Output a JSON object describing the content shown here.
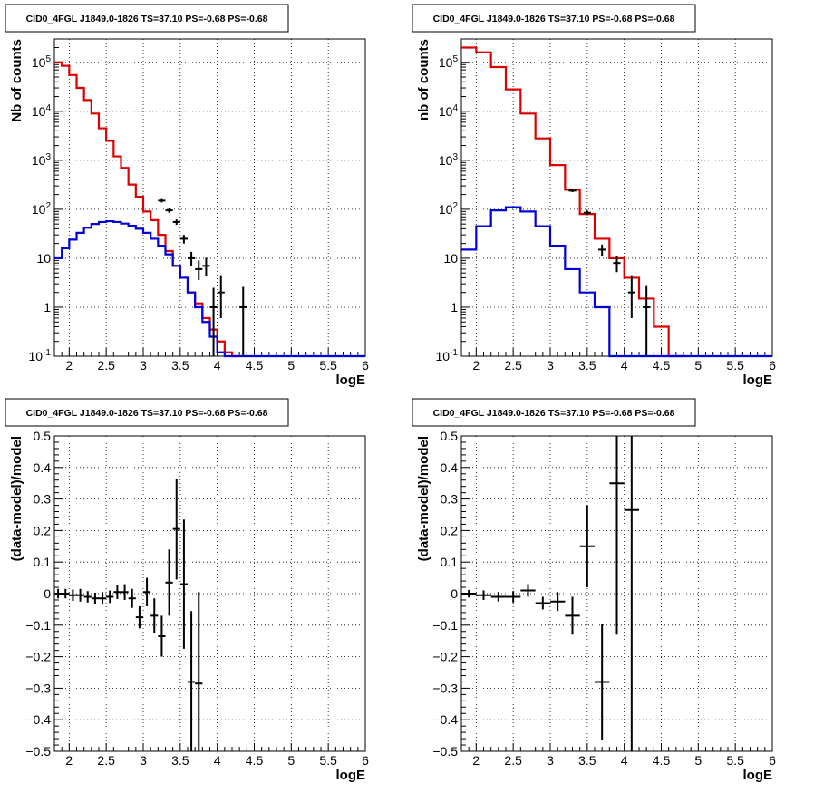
{
  "chart_data": [
    {
      "type": "line",
      "title": "CID0_4FGL J1849.0-1826 TS=37.10 PS=-0.68 PS=-0.68",
      "xlabel": "logE",
      "ylabel": "Nb of counts",
      "y_scale": "log",
      "xlim": [
        1.8,
        6.0
      ],
      "ylim": [
        0.1,
        300000
      ],
      "grid": true,
      "x_ticks": [
        "2",
        "2.5",
        "3",
        "3.5",
        "4",
        "4.5",
        "5",
        "5.5",
        "6"
      ],
      "y_ticks": [
        "10^-1",
        "1",
        "10",
        "10^2",
        "10^3",
        "10^4",
        "10^5"
      ],
      "bin_edges": [
        1.8,
        1.9,
        2.0,
        2.1,
        2.2,
        2.3,
        2.4,
        2.5,
        2.6,
        2.7,
        2.8,
        2.9,
        3.0,
        3.1,
        3.2,
        3.3,
        3.4,
        3.5,
        3.6,
        3.7,
        3.8,
        3.9,
        4.0,
        4.1,
        4.2,
        4.3,
        4.4,
        4.5,
        4.6,
        4.7,
        4.8,
        4.9,
        5.0,
        5.1,
        5.2,
        5.3,
        5.4,
        5.5,
        5.6,
        5.7,
        5.8,
        5.9,
        6.0
      ],
      "series": [
        {
          "color": "#dd0000",
          "values": [
            100000,
            85000,
            55000,
            30000,
            17000,
            9000,
            4500,
            2500,
            1200,
            700,
            320,
            180,
            90,
            60,
            30,
            14,
            7,
            4,
            2,
            1.2,
            0.6,
            0.35,
            0.2,
            0.12,
            0.08
          ]
        },
        {
          "color": "#0000dd",
          "values": [
            10,
            16,
            24,
            33,
            42,
            50,
            55,
            57,
            55,
            51,
            46,
            40,
            33,
            25,
            18,
            12,
            7,
            4,
            2,
            1,
            0.5,
            0.25,
            0.12,
            0.1,
            0.1,
            0.1,
            0.1,
            0.1,
            0.1,
            0.1,
            0.1,
            0.1,
            0.1,
            0.1,
            0.1,
            0.1,
            0.1,
            0.1,
            0.1,
            0.1,
            0.1,
            0.1
          ]
        },
        {
          "color": "#000000",
          "points": [
            {
              "x": 3.25,
              "y": 150,
              "yerr": [
                12,
                12
              ]
            },
            {
              "x": 3.35,
              "y": 95,
              "yerr": [
                10,
                10
              ]
            },
            {
              "x": 3.45,
              "y": 55,
              "yerr": [
                7,
                7
              ]
            },
            {
              "x": 3.55,
              "y": 25,
              "yerr": [
                5,
                5
              ]
            },
            {
              "x": 3.65,
              "y": 10,
              "yerr": [
                3,
                3.5
              ]
            },
            {
              "x": 3.75,
              "y": 6,
              "yerr": [
                2.4,
                3
              ]
            },
            {
              "x": 3.85,
              "y": 7,
              "yerr": [
                2.6,
                3.2
              ]
            },
            {
              "x": 3.95,
              "y": 1,
              "yerr": [
                0.9,
                1.5
              ]
            },
            {
              "x": 4.05,
              "y": 2,
              "yerr": [
                1.4,
                2.5
              ]
            },
            {
              "x": 4.35,
              "y": 1,
              "yerr": [
                0.9,
                1.6
              ]
            }
          ]
        }
      ]
    },
    {
      "type": "line",
      "title": "CID0_4FGL J1849.0-1826 TS=37.10 PS=-0.68 PS=-0.68",
      "xlabel": "logE",
      "ylabel": "nb of counts",
      "y_scale": "log",
      "xlim": [
        1.8,
        6.0
      ],
      "ylim": [
        0.1,
        300000
      ],
      "grid": true,
      "x_ticks": [
        "2",
        "2.5",
        "3",
        "3.5",
        "4",
        "4.5",
        "5",
        "5.5",
        "6"
      ],
      "y_ticks": [
        "10^-1",
        "1",
        "10",
        "10^2",
        "10^3",
        "10^4",
        "10^5"
      ],
      "bin_edges": [
        1.8,
        2.0,
        2.2,
        2.4,
        2.6,
        2.8,
        3.0,
        3.2,
        3.4,
        3.6,
        3.8,
        4.0,
        4.2,
        4.4,
        4.6,
        4.8,
        5.0,
        5.2,
        5.4,
        5.6,
        5.8,
        6.0
      ],
      "series": [
        {
          "color": "#dd0000",
          "values": [
            200000,
            160000,
            80000,
            28000,
            9000,
            2800,
            800,
            250,
            80,
            25,
            10,
            4,
            1.5,
            0.4,
            0.1
          ]
        },
        {
          "color": "#0000dd",
          "values": [
            15,
            45,
            95,
            110,
            90,
            45,
            18,
            6,
            2,
            1,
            0.1,
            0.1,
            0.1,
            0.1,
            0.1,
            0.1,
            0.1,
            0.1,
            0.1,
            0.1,
            0.1
          ]
        },
        {
          "color": "#000000",
          "points": [
            {
              "x": 3.3,
              "y": 240,
              "yerr": [
                16,
                16
              ]
            },
            {
              "x": 3.5,
              "y": 85,
              "yerr": [
                9,
                9
              ]
            },
            {
              "x": 3.7,
              "y": 15,
              "yerr": [
                4,
                4
              ]
            },
            {
              "x": 3.9,
              "y": 8,
              "yerr": [
                2.8,
                3.3
              ]
            },
            {
              "x": 4.1,
              "y": 2,
              "yerr": [
                1.4,
                2.5
              ]
            },
            {
              "x": 4.3,
              "y": 1,
              "yerr": [
                0.9,
                1.7
              ]
            }
          ]
        }
      ]
    },
    {
      "type": "scatter",
      "title": "CID0_4FGL J1849.0-1826 TS=37.10 PS=-0.68 PS=-0.68",
      "xlabel": "logE",
      "ylabel": "(data-model)/model",
      "xlim": [
        1.8,
        6.0
      ],
      "ylim": [
        -0.5,
        0.5
      ],
      "grid": true,
      "x_ticks": [
        "2",
        "2.5",
        "3",
        "3.5",
        "4",
        "4.5",
        "5",
        "5.5",
        "6"
      ],
      "y_ticks": [
        "-0.5",
        "-0.4",
        "-0.3",
        "-0.2",
        "-0.1",
        "0",
        "0.1",
        "0.2",
        "0.3",
        "0.4",
        "0.5"
      ],
      "series": [
        {
          "color": "#000000",
          "bin_half_width": 0.05,
          "points": [
            {
              "x": 1.85,
              "y": 0.0,
              "yerr": 0.015
            },
            {
              "x": 1.95,
              "y": 0.0,
              "yerr": 0.015
            },
            {
              "x": 2.05,
              "y": -0.005,
              "yerr": 0.018
            },
            {
              "x": 2.15,
              "y": -0.005,
              "yerr": 0.02
            },
            {
              "x": 2.25,
              "y": -0.01,
              "yerr": 0.018
            },
            {
              "x": 2.35,
              "y": -0.015,
              "yerr": 0.018
            },
            {
              "x": 2.45,
              "y": -0.015,
              "yerr": 0.02
            },
            {
              "x": 2.55,
              "y": -0.01,
              "yerr": 0.02
            },
            {
              "x": 2.65,
              "y": 0.005,
              "yerr": 0.022
            },
            {
              "x": 2.75,
              "y": 0.005,
              "yerr": 0.025
            },
            {
              "x": 2.85,
              "y": -0.015,
              "yerr": 0.03
            },
            {
              "x": 2.95,
              "y": -0.075,
              "yerr": 0.035
            },
            {
              "x": 3.05,
              "y": 0.005,
              "yerr": 0.045
            },
            {
              "x": 3.15,
              "y": -0.07,
              "yerr": 0.055
            },
            {
              "x": 3.25,
              "y": -0.135,
              "yerr": 0.065
            },
            {
              "x": 3.35,
              "y": 0.035,
              "yerr": 0.105
            },
            {
              "x": 3.45,
              "y": 0.205,
              "yerr": 0.16
            },
            {
              "x": 3.55,
              "y": 0.03,
              "yerr": 0.205
            },
            {
              "x": 3.65,
              "y": -0.28,
              "yerr": 0.225
            },
            {
              "x": 3.75,
              "y": -0.285,
              "yerr": 0.29
            }
          ]
        }
      ]
    },
    {
      "type": "scatter",
      "title": "CID0_4FGL J1849.0-1826 TS=37.10 PS=-0.68 PS=-0.68",
      "xlabel": "logE",
      "ylabel": "(data-model)/model",
      "xlim": [
        1.8,
        6.0
      ],
      "ylim": [
        -0.5,
        0.5
      ],
      "grid": true,
      "x_ticks": [
        "2",
        "2.5",
        "3",
        "3.5",
        "4",
        "4.5",
        "5",
        "5.5",
        "6"
      ],
      "y_ticks": [
        "-0.5",
        "-0.4",
        "-0.3",
        "-0.2",
        "-0.1",
        "0",
        "0.1",
        "0.2",
        "0.3",
        "0.4",
        "0.5"
      ],
      "series": [
        {
          "color": "#000000",
          "bin_half_width": 0.1,
          "points": [
            {
              "x": 1.9,
              "y": 0.0,
              "yerr": 0.012
            },
            {
              "x": 2.1,
              "y": -0.005,
              "yerr": 0.015
            },
            {
              "x": 2.3,
              "y": -0.01,
              "yerr": 0.015
            },
            {
              "x": 2.5,
              "y": -0.01,
              "yerr": 0.018
            },
            {
              "x": 2.7,
              "y": 0.01,
              "yerr": 0.02
            },
            {
              "x": 2.9,
              "y": -0.03,
              "yerr": 0.02
            },
            {
              "x": 3.1,
              "y": -0.025,
              "yerr": 0.03
            },
            {
              "x": 3.3,
              "y": -0.07,
              "yerr": 0.06
            },
            {
              "x": 3.5,
              "y": 0.15,
              "yerr": 0.13
            },
            {
              "x": 3.7,
              "y": -0.28,
              "yerr": 0.185
            },
            {
              "x": 3.9,
              "y": 0.35,
              "yerr": 0.48
            },
            {
              "x": 4.1,
              "y": 0.265,
              "yerr": 0.9
            }
          ]
        }
      ]
    }
  ]
}
